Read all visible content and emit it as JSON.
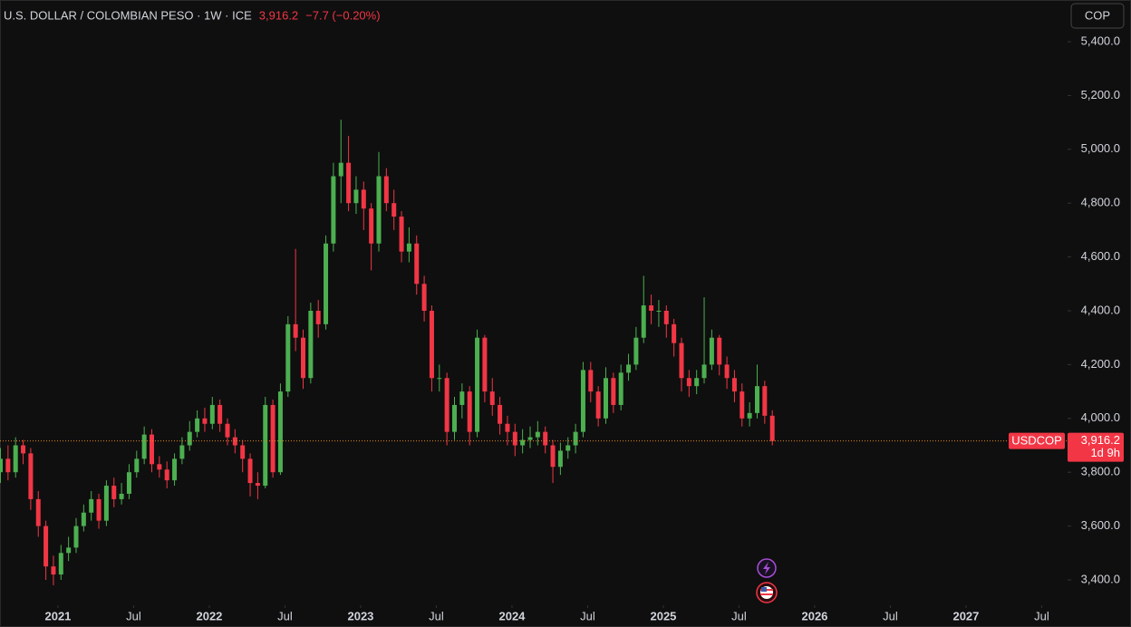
{
  "chart_data": {
    "type": "candlestick",
    "title": "U.S. DOLLAR / COLOMBIAN PESO · 1W · ICE",
    "symbol": "USDCOP",
    "currency": "COP",
    "countdown": "1d 9h",
    "last_price": {
      "value": 3916.2,
      "label": "3,916.2"
    },
    "change_label": "−7.7 (−0.20%)",
    "up_color": "#4caf50",
    "down_color": "#f23645",
    "price_line_color": "#e8871e",
    "xlim": [
      2020.617,
      2027.671
    ],
    "xticks": [
      2021,
      {
        "value": 2021.5,
        "label": "Jul"
      },
      2022,
      {
        "value": 2022.5,
        "label": "Jul"
      },
      2023,
      {
        "value": 2023.5,
        "label": "Jul"
      },
      2024,
      {
        "value": 2024.5,
        "label": "Jul"
      },
      2025,
      {
        "value": 2025.5,
        "label": "Jul"
      },
      2026,
      {
        "value": 2026.5,
        "label": "Jul"
      },
      2027,
      {
        "value": 2027.5,
        "label": "Jul"
      }
    ],
    "ylim": [
      3305.7,
      5554.9
    ],
    "yticks": [
      {
        "value": 3400,
        "label": "3,400.0"
      },
      {
        "value": 3600,
        "label": "3,600.0"
      },
      {
        "value": 3800,
        "label": "3,800.0"
      },
      {
        "value": 4000,
        "label": "4,000.0"
      },
      {
        "value": 4200,
        "label": "4,200.0"
      },
      {
        "value": 4400,
        "label": "4,400.0"
      },
      {
        "value": 4600,
        "label": "4,600.0"
      },
      {
        "value": 4800,
        "label": "4,800.0"
      },
      {
        "value": 5000,
        "label": "5,000.0"
      },
      {
        "value": 5200,
        "label": "5,200.0"
      },
      {
        "value": 5400,
        "label": "5,400.0"
      }
    ],
    "x": [
      2020.62,
      2020.67,
      2020.72,
      2020.77,
      2020.82,
      2020.87,
      2020.92,
      2020.97,
      2021.02,
      2021.07,
      2021.12,
      2021.17,
      2021.22,
      2021.27,
      2021.32,
      2021.37,
      2021.42,
      2021.47,
      2021.52,
      2021.57,
      2021.62,
      2021.67,
      2021.72,
      2021.77,
      2021.82,
      2021.87,
      2021.92,
      2021.97,
      2022.02,
      2022.07,
      2022.12,
      2022.17,
      2022.22,
      2022.27,
      2022.32,
      2022.37,
      2022.42,
      2022.47,
      2022.52,
      2022.57,
      2022.62,
      2022.67,
      2022.72,
      2022.77,
      2022.82,
      2022.87,
      2022.92,
      2022.97,
      2023.02,
      2023.07,
      2023.12,
      2023.17,
      2023.22,
      2023.27,
      2023.32,
      2023.37,
      2023.42,
      2023.47,
      2023.52,
      2023.57,
      2023.62,
      2023.67,
      2023.72,
      2023.77,
      2023.82,
      2023.87,
      2023.92,
      2023.97,
      2024.02,
      2024.07,
      2024.12,
      2024.17,
      2024.22,
      2024.27,
      2024.32,
      2024.37,
      2024.42,
      2024.47,
      2024.52,
      2024.57,
      2024.62,
      2024.67,
      2024.72,
      2024.77,
      2024.82,
      2024.87,
      2024.92,
      2024.97,
      2025.02,
      2025.07,
      2025.12,
      2025.17,
      2025.22,
      2025.27,
      2025.32,
      2025.37,
      2025.42,
      2025.47,
      2025.52,
      2025.57,
      2025.62,
      2025.67,
      2025.72
    ],
    "open": [
      3800,
      3850,
      3800,
      3900,
      3870,
      3700,
      3600,
      3450,
      3420,
      3500,
      3520,
      3600,
      3650,
      3700,
      3620,
      3750,
      3700,
      3720,
      3800,
      3850,
      3940,
      3830,
      3810,
      3770,
      3850,
      3900,
      3950,
      4000,
      3980,
      4050,
      3980,
      3930,
      3900,
      3850,
      3760,
      3750,
      4050,
      3800,
      4100,
      4350,
      4300,
      4150,
      4400,
      4350,
      4650,
      4900,
      4950,
      4800,
      4850,
      4780,
      4650,
      4900,
      4800,
      4750,
      4620,
      4650,
      4500,
      4400,
      4150,
      4150,
      3950,
      4050,
      4100,
      3950,
      4300,
      4100,
      4050,
      3980,
      3950,
      3900,
      3920,
      3930,
      3950,
      3900,
      3820,
      3880,
      3900,
      3950,
      4180,
      4100,
      4000,
      4150,
      4050,
      4170,
      4200,
      4300,
      4420,
      4400,
      4400,
      4350,
      4280,
      4150,
      4120,
      4150,
      4200,
      4300,
      4200,
      4150,
      4100,
      4000,
      4020,
      4120,
      4010
    ],
    "high": [
      3890,
      3900,
      3930,
      3920,
      3890,
      3730,
      3620,
      3490,
      3530,
      3560,
      3630,
      3680,
      3730,
      3720,
      3770,
      3780,
      3760,
      3830,
      3880,
      3970,
      3960,
      3860,
      3840,
      3870,
      3930,
      3990,
      4030,
      4040,
      4080,
      4070,
      4000,
      3960,
      3920,
      3870,
      3800,
      4080,
      4070,
      4130,
      4380,
      4630,
      4330,
      4430,
      4440,
      4680,
      4950,
      5110,
      5050,
      4900,
      4880,
      4800,
      4990,
      4930,
      4850,
      4770,
      4710,
      4680,
      4530,
      4420,
      4200,
      4170,
      4080,
      4130,
      4120,
      4330,
      4310,
      4150,
      4080,
      4010,
      3980,
      3960,
      3970,
      3990,
      3970,
      3920,
      3910,
      3930,
      3980,
      4210,
      4210,
      4120,
      4190,
      4170,
      4200,
      4240,
      4340,
      4530,
      4460,
      4440,
      4420,
      4370,
      4300,
      4180,
      4180,
      4450,
      4330,
      4310,
      4230,
      4180,
      4130,
      4060,
      4200,
      4140,
      4030
    ],
    "low": [
      3760,
      3770,
      3780,
      3830,
      3660,
      3560,
      3400,
      3380,
      3400,
      3470,
      3500,
      3580,
      3620,
      3590,
      3600,
      3670,
      3680,
      3700,
      3780,
      3830,
      3800,
      3780,
      3740,
      3750,
      3830,
      3880,
      3930,
      3950,
      3960,
      3950,
      3900,
      3870,
      3800,
      3710,
      3700,
      3740,
      3780,
      3790,
      4080,
      4250,
      4110,
      4130,
      4300,
      4330,
      4620,
      4800,
      4770,
      4760,
      4700,
      4550,
      4620,
      4770,
      4700,
      4580,
      4580,
      4460,
      4360,
      4100,
      4100,
      3900,
      3920,
      4000,
      3900,
      3930,
      4060,
      4010,
      3940,
      3900,
      3860,
      3870,
      3890,
      3900,
      3870,
      3760,
      3790,
      3850,
      3870,
      3930,
      4060,
      3970,
      3980,
      4020,
      4030,
      4140,
      4180,
      4280,
      4350,
      4340,
      4300,
      4230,
      4100,
      4080,
      4090,
      4130,
      4180,
      4160,
      4110,
      4060,
      3970,
      3970,
      4000,
      3980,
      3900
    ],
    "close": [
      3850,
      3800,
      3900,
      3870,
      3700,
      3600,
      3450,
      3420,
      3500,
      3520,
      3600,
      3650,
      3700,
      3620,
      3750,
      3700,
      3720,
      3800,
      3850,
      3940,
      3830,
      3810,
      3770,
      3850,
      3900,
      3950,
      4000,
      3980,
      4050,
      3980,
      3930,
      3900,
      3850,
      3760,
      3750,
      4050,
      3800,
      4100,
      4350,
      4300,
      4150,
      4400,
      4350,
      4650,
      4900,
      4950,
      4800,
      4850,
      4780,
      4650,
      4900,
      4800,
      4750,
      4620,
      4650,
      4500,
      4400,
      4150,
      4150,
      3950,
      4050,
      4100,
      3950,
      4300,
      4100,
      4050,
      3980,
      3950,
      3900,
      3920,
      3930,
      3950,
      3900,
      3820,
      3880,
      3900,
      3950,
      4180,
      4100,
      4000,
      4150,
      4050,
      4170,
      4200,
      4300,
      4420,
      4400,
      4400,
      4350,
      4280,
      4150,
      4120,
      4150,
      4200,
      4300,
      4200,
      4150,
      4100,
      4000,
      4020,
      4120,
      4010,
      3916.2
    ]
  }
}
